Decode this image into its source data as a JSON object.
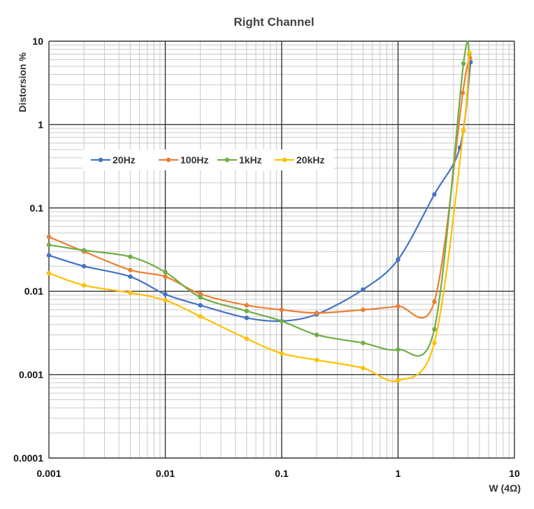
{
  "chart_data": {
    "type": "line",
    "title": "Right Channel",
    "xlabel": "W (4Ω)",
    "ylabel": "Distorsion %",
    "x_scale": "log",
    "y_scale": "log",
    "xlim": [
      0.001,
      10
    ],
    "ylim": [
      0.0001,
      10
    ],
    "x_ticks": [
      "0.001",
      "0.01",
      "0.1",
      "1",
      "10"
    ],
    "y_ticks": [
      "10",
      "1",
      "0.1",
      "0.01",
      "0.001",
      "0.0001"
    ],
    "grid": true,
    "legend_position": "left, middle",
    "series": [
      {
        "name": "20Hz",
        "color": "#4472c4",
        "points": [
          [
            0.001,
            0.027
          ],
          [
            0.002,
            0.02
          ],
          [
            0.005,
            0.015
          ],
          [
            0.01,
            0.0092
          ],
          [
            0.02,
            0.0068
          ],
          [
            0.05,
            0.0048
          ],
          [
            0.1,
            0.0044
          ],
          [
            0.2,
            0.0053
          ],
          [
            0.5,
            0.0105
          ],
          [
            1,
            0.024
          ],
          [
            2.05,
            0.145
          ],
          [
            3.4,
            0.53
          ],
          [
            4.2,
            5.6
          ]
        ]
      },
      {
        "name": "100Hz",
        "color": "#ed7d31",
        "points": [
          [
            0.001,
            0.045
          ],
          [
            0.002,
            0.03
          ],
          [
            0.005,
            0.018
          ],
          [
            0.01,
            0.015
          ],
          [
            0.02,
            0.0093
          ],
          [
            0.05,
            0.0068
          ],
          [
            0.1,
            0.006
          ],
          [
            0.2,
            0.0055
          ],
          [
            0.5,
            0.006
          ],
          [
            1,
            0.0066
          ],
          [
            2.05,
            0.0075
          ],
          [
            3.6,
            2.4
          ],
          [
            4.15,
            6.3
          ]
        ]
      },
      {
        "name": "1kHz",
        "color": "#70ad47",
        "points": [
          [
            0.001,
            0.036
          ],
          [
            0.002,
            0.031
          ],
          [
            0.005,
            0.026
          ],
          [
            0.01,
            0.017
          ],
          [
            0.02,
            0.0085
          ],
          [
            0.05,
            0.0058
          ],
          [
            0.1,
            0.0044
          ],
          [
            0.2,
            0.003
          ],
          [
            0.5,
            0.0024
          ],
          [
            1,
            0.002
          ],
          [
            2.05,
            0.0035
          ],
          [
            3.65,
            5.4
          ],
          [
            4.1,
            7.0
          ]
        ]
      },
      {
        "name": "20kHz",
        "color": "#ffc000",
        "points": [
          [
            0.001,
            0.0165
          ],
          [
            0.002,
            0.0118
          ],
          [
            0.005,
            0.0096
          ],
          [
            0.01,
            0.0078
          ],
          [
            0.02,
            0.005
          ],
          [
            0.05,
            0.0027
          ],
          [
            0.1,
            0.0018
          ],
          [
            0.2,
            0.0015
          ],
          [
            0.5,
            0.0012
          ],
          [
            1,
            0.00085
          ],
          [
            2.05,
            0.0024
          ],
          [
            3.65,
            0.85
          ],
          [
            4.1,
            7.3
          ]
        ]
      }
    ]
  }
}
